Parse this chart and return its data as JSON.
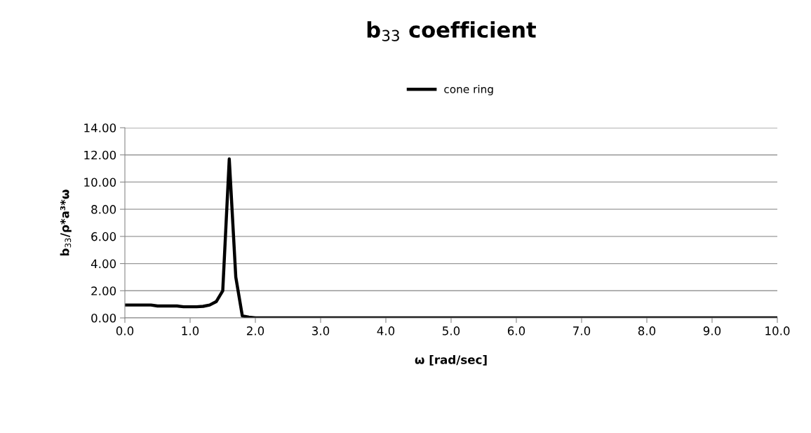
{
  "chart_data": {
    "type": "line",
    "title": "b$_{33}$ coefficient",
    "xlabel": "ω [rad/sec]",
    "ylabel": "b$_{33}$/ρ*a³*ω",
    "series": [
      {
        "name": "cone ring",
        "color": "#000000",
        "x": [
          0.0,
          0.1,
          0.2,
          0.3,
          0.4,
          0.5,
          0.6,
          0.7,
          0.8,
          0.9,
          1.0,
          1.1,
          1.2,
          1.3,
          1.4,
          1.5,
          1.6,
          1.7,
          1.8,
          1.9,
          2.0,
          3.0,
          4.0,
          5.0,
          6.0,
          7.0,
          8.0,
          9.0,
          10.0
        ],
        "values": [
          0.95,
          0.95,
          0.95,
          0.95,
          0.95,
          0.88,
          0.88,
          0.88,
          0.88,
          0.82,
          0.82,
          0.82,
          0.85,
          0.95,
          1.2,
          2.0,
          11.7,
          3.0,
          0.15,
          0.05,
          0.0,
          0.0,
          0.0,
          0.0,
          0.0,
          0.0,
          0.0,
          0.0,
          0.0
        ]
      }
    ],
    "xlim": [
      0,
      10
    ],
    "xticks": [
      {
        "value": 0,
        "label": "0.0"
      },
      {
        "value": 1,
        "label": "1.0"
      },
      {
        "value": 2,
        "label": "2.0"
      },
      {
        "value": 3,
        "label": "3.0"
      },
      {
        "value": 4,
        "label": "4.0"
      },
      {
        "value": 5,
        "label": "5.0"
      },
      {
        "value": 6,
        "label": "6.0"
      },
      {
        "value": 7,
        "label": "7.0"
      },
      {
        "value": 8,
        "label": "8.0"
      },
      {
        "value": 9,
        "label": "9.0"
      },
      {
        "value": 10,
        "label": "10.0"
      }
    ],
    "ylim": [
      0,
      14
    ],
    "yticks": [
      {
        "value": 0,
        "label": "0.00"
      },
      {
        "value": 2,
        "label": "2.00"
      },
      {
        "value": 4,
        "label": "4.00"
      },
      {
        "value": 6,
        "label": "6.00"
      },
      {
        "value": 8,
        "label": "8.00"
      },
      {
        "value": 10,
        "label": "10.00"
      },
      {
        "value": 12,
        "label": "12.00"
      },
      {
        "value": 14,
        "label": "14.00"
      }
    ],
    "grid": "y",
    "legend": "top",
    "marker": "none",
    "line_style": "solid"
  }
}
